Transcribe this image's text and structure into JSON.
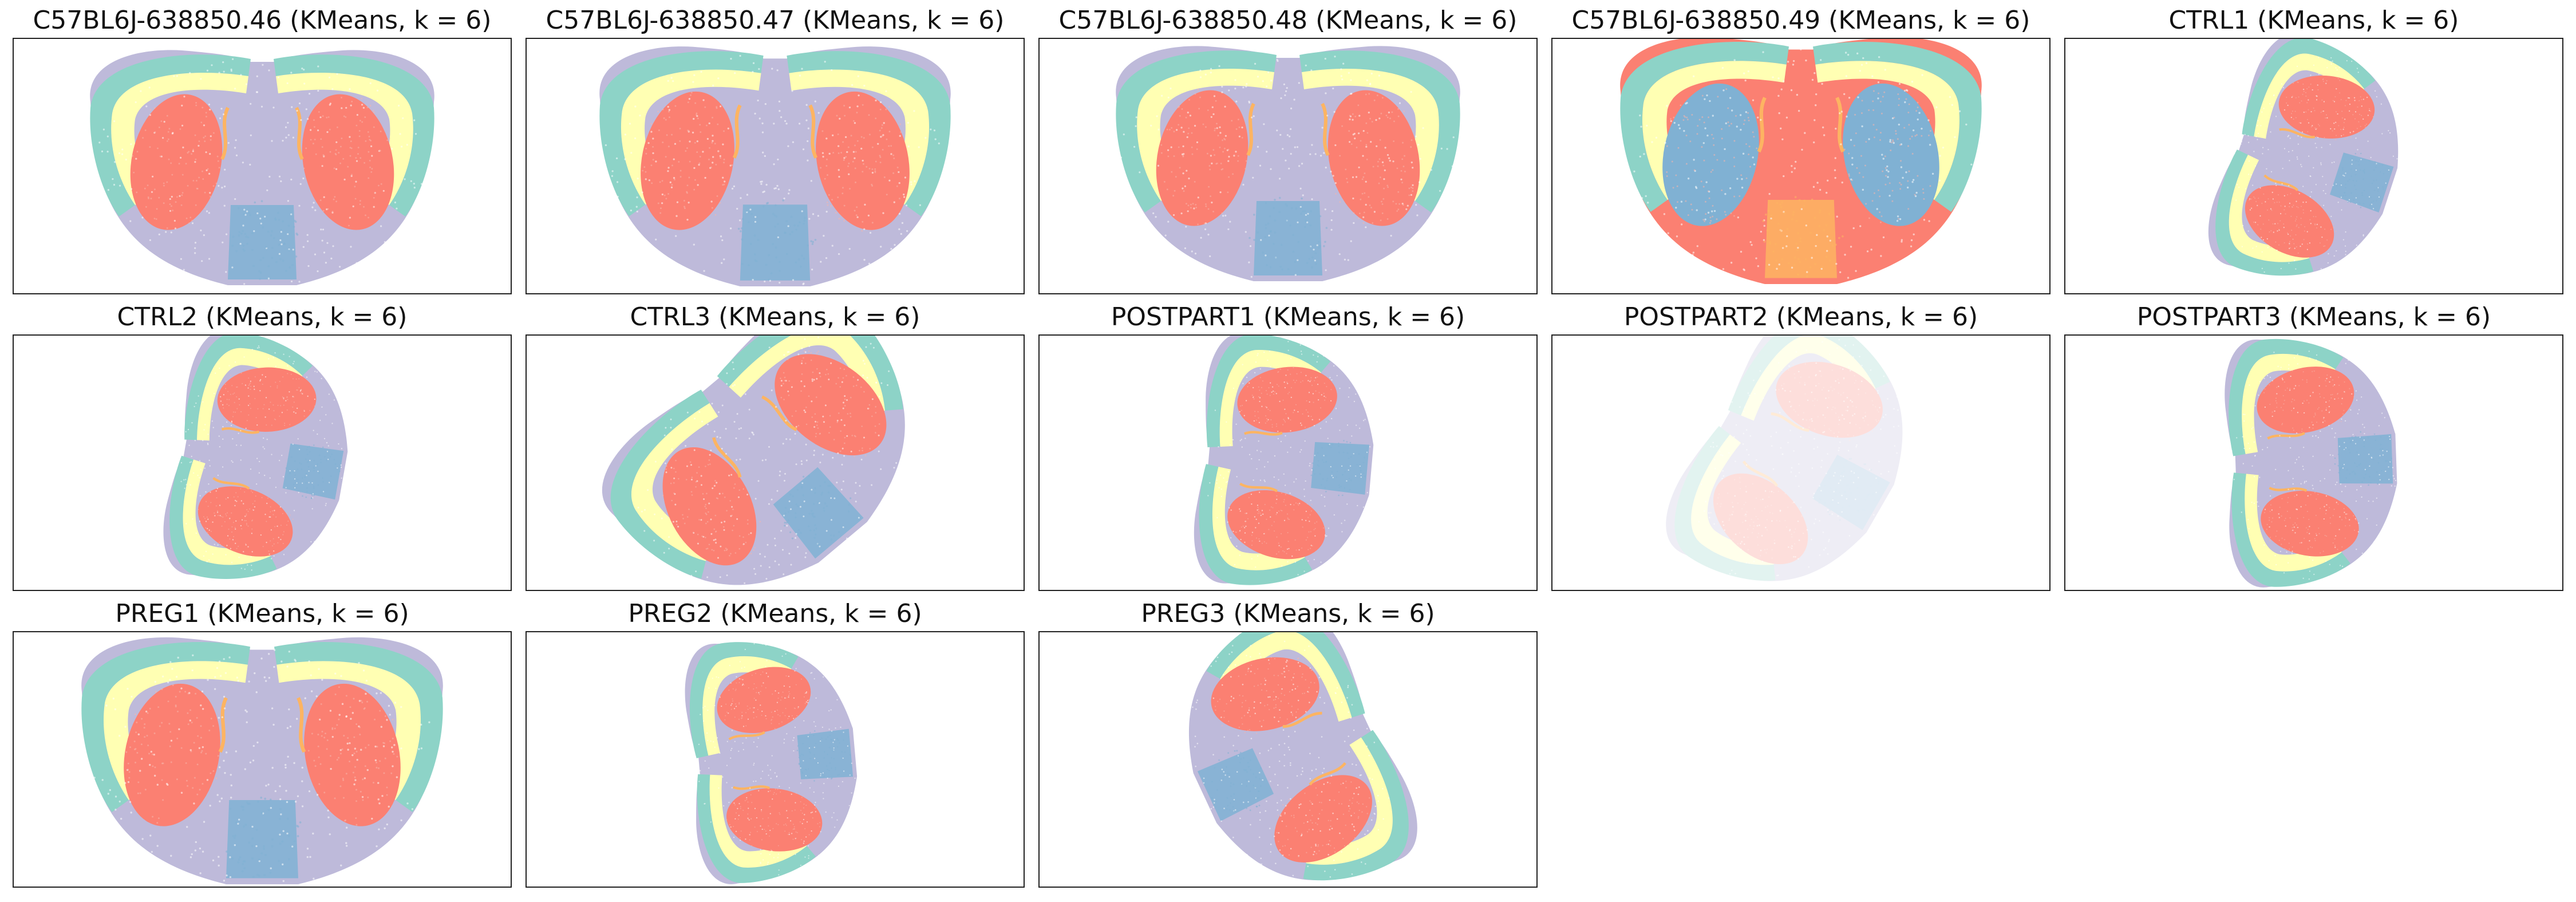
{
  "figure": {
    "colors": {
      "cluster_0": "#8dd3c7",
      "cluster_1": "#ffffb3",
      "cluster_2": "#bebada",
      "cluster_3": "#fb8072",
      "cluster_4": "#80b1d3",
      "cluster_5": "#fdb462"
    }
  },
  "chart_data": [
    {
      "type": "scatter",
      "title": "C57BL6J-638850.46 (KMeans, k = 6)",
      "k": 6,
      "shape": "coronal",
      "cortex": [
        "cluster_0",
        "cluster_1"
      ],
      "core": "cluster_3",
      "bg": "cluster_2",
      "mid": "cluster_4",
      "accent": "cluster_5",
      "opacity": 1.0,
      "axes": "off"
    },
    {
      "type": "scatter",
      "title": "C57BL6J-638850.47 (KMeans, k = 6)",
      "k": 6,
      "shape": "coronal",
      "cortex": [
        "cluster_0",
        "cluster_1"
      ],
      "core": "cluster_3",
      "bg": "cluster_2",
      "mid": "cluster_4",
      "accent": "cluster_5",
      "opacity": 1.0,
      "axes": "off"
    },
    {
      "type": "scatter",
      "title": "C57BL6J-638850.48 (KMeans, k = 6)",
      "k": 6,
      "shape": "coronal",
      "cortex": [
        "cluster_0",
        "cluster_1"
      ],
      "core": "cluster_3",
      "bg": "cluster_2",
      "mid": "cluster_4",
      "accent": "cluster_5",
      "opacity": 1.0,
      "axes": "off"
    },
    {
      "type": "scatter",
      "title": "C57BL6J-638850.49 (KMeans, k = 6)",
      "k": 6,
      "shape": "coronal",
      "cortex": [
        "cluster_0",
        "cluster_1"
      ],
      "core": "cluster_4",
      "bg": "cluster_3",
      "mid": "cluster_5",
      "accent": "cluster_5",
      "opacity": 1.0,
      "axes": "off"
    },
    {
      "type": "scatter",
      "title": "CTRL1 (KMeans, k = 6)",
      "k": 6,
      "shape": "rotated",
      "cortex": [
        "cluster_0",
        "cluster_1"
      ],
      "core": "cluster_3",
      "bg": "cluster_2",
      "mid": "cluster_4",
      "accent": "cluster_5",
      "opacity": 1.0,
      "axes": "off"
    },
    {
      "type": "scatter",
      "title": "CTRL2 (KMeans, k = 6)",
      "k": 6,
      "shape": "rotated",
      "cortex": [
        "cluster_0",
        "cluster_1"
      ],
      "core": "cluster_3",
      "bg": "cluster_2",
      "mid": "cluster_4",
      "accent": "cluster_5",
      "opacity": 1.0,
      "axes": "off"
    },
    {
      "type": "scatter",
      "title": "CTRL3 (KMeans, k = 6)",
      "k": 6,
      "shape": "rotated",
      "cortex": [
        "cluster_0",
        "cluster_1"
      ],
      "core": "cluster_3",
      "bg": "cluster_2",
      "mid": "cluster_4",
      "accent": "cluster_5",
      "opacity": 1.0,
      "axes": "off"
    },
    {
      "type": "scatter",
      "title": "POSTPART1 (KMeans, k = 6)",
      "k": 6,
      "shape": "rotated",
      "cortex": [
        "cluster_0",
        "cluster_1"
      ],
      "core": "cluster_3",
      "bg": "cluster_2",
      "mid": "cluster_4",
      "accent": "cluster_5",
      "opacity": 1.0,
      "axes": "off"
    },
    {
      "type": "scatter",
      "title": "POSTPART2 (KMeans, k = 6)",
      "k": 6,
      "shape": "rotated",
      "cortex": [
        "cluster_0",
        "cluster_1"
      ],
      "core": "cluster_3",
      "bg": "cluster_2",
      "mid": "cluster_4",
      "accent": "cluster_5",
      "opacity": 0.25,
      "axes": "off"
    },
    {
      "type": "scatter",
      "title": "POSTPART3 (KMeans, k = 6)",
      "k": 6,
      "shape": "rotated",
      "cortex": [
        "cluster_0",
        "cluster_1"
      ],
      "core": "cluster_3",
      "bg": "cluster_2",
      "mid": "cluster_4",
      "accent": "cluster_5",
      "opacity": 1.0,
      "axes": "off"
    },
    {
      "type": "scatter",
      "title": "PREG1 (KMeans, k = 6)",
      "k": 6,
      "shape": "coronal",
      "cortex": [
        "cluster_0",
        "cluster_1"
      ],
      "core": "cluster_3",
      "bg": "cluster_2",
      "mid": "cluster_4",
      "accent": "cluster_5",
      "opacity": 1.0,
      "axes": "off"
    },
    {
      "type": "scatter",
      "title": "PREG2 (KMeans, k = 6)",
      "k": 6,
      "shape": "rotated",
      "cortex": [
        "cluster_0",
        "cluster_1"
      ],
      "core": "cluster_3",
      "bg": "cluster_2",
      "mid": "cluster_4",
      "accent": "cluster_5",
      "opacity": 1.0,
      "axes": "off"
    },
    {
      "type": "scatter",
      "title": "PREG3 (KMeans, k = 6)",
      "k": 6,
      "shape": "rotated",
      "cortex": [
        "cluster_0",
        "cluster_1"
      ],
      "core": "cluster_3",
      "bg": "cluster_2",
      "mid": "cluster_4",
      "accent": "cluster_5",
      "opacity": 1.0,
      "axes": "off"
    }
  ]
}
